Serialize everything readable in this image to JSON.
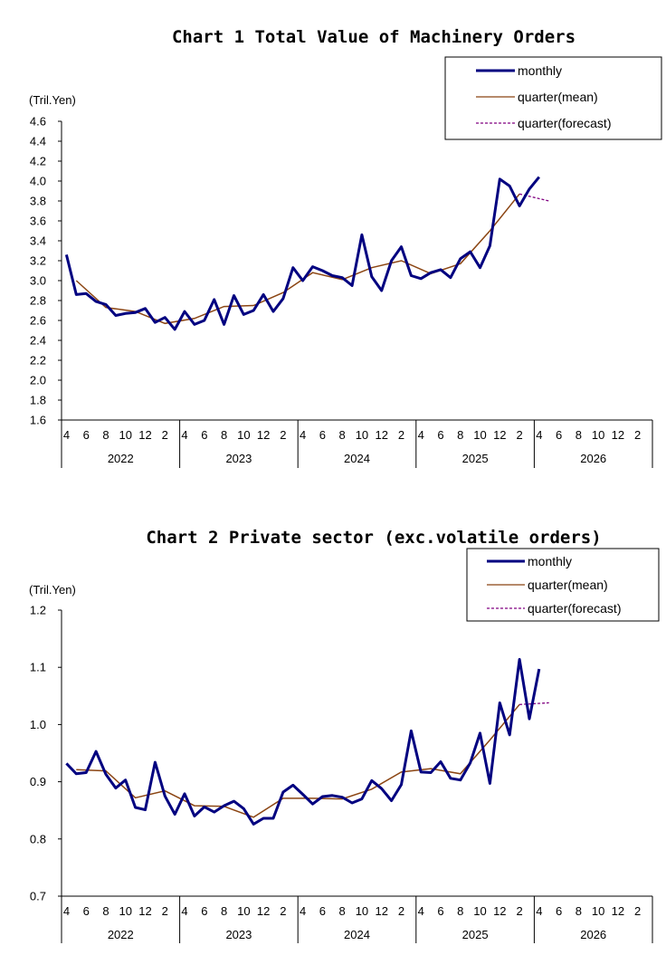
{
  "colors": {
    "monthly": "#000080",
    "mean": "#8B4513",
    "forecast": "#800080"
  },
  "legend": {
    "monthly": "monthly",
    "mean": "quarter(mean)",
    "forecast": "quarter(forecast)"
  },
  "month_labels": [
    "4",
    "6",
    "8",
    "10",
    "12",
    "2",
    "4",
    "6",
    "8",
    "10",
    "12",
    "2",
    "4",
    "6",
    "8",
    "10",
    "12",
    "2",
    "4",
    "6",
    "8",
    "10",
    "12",
    "2",
    "4",
    "6",
    "8",
    "10",
    "12",
    "2"
  ],
  "year_labels": [
    "2022",
    "2023",
    "2024",
    "2025",
    "2026"
  ],
  "chart_data": [
    {
      "type": "line",
      "title": "Chart 1 Total Value of Machinery Orders",
      "unit": "(Tril.Yen)",
      "ylim": [
        1.6,
        4.6
      ],
      "yticks": [
        "1.6",
        "1.8",
        "2.0",
        "2.2",
        "2.4",
        "2.6",
        "2.8",
        "3.0",
        "3.2",
        "3.4",
        "3.6",
        "3.8",
        "4.0",
        "4.2",
        "4.4",
        "4.6"
      ],
      "x": [
        "2022-04",
        "2022-05",
        "2022-06",
        "2022-07",
        "2022-08",
        "2022-09",
        "2022-10",
        "2022-11",
        "2022-12",
        "2023-01",
        "2023-02",
        "2023-03",
        "2023-04",
        "2023-05",
        "2023-06",
        "2023-07",
        "2023-08",
        "2023-09",
        "2023-10",
        "2023-11",
        "2023-12",
        "2024-01",
        "2024-02",
        "2024-03",
        "2024-04",
        "2024-05",
        "2024-06",
        "2024-07",
        "2024-08",
        "2024-09",
        "2024-10",
        "2024-11",
        "2024-12",
        "2025-01",
        "2025-02",
        "2025-03",
        "2025-04",
        "2025-05",
        "2025-06",
        "2025-07",
        "2025-08",
        "2025-09",
        "2025-10",
        "2025-11",
        "2025-12",
        "2026-01",
        "2026-02",
        "2026-03",
        "2026-04"
      ],
      "series": [
        {
          "name": "monthly",
          "values": [
            3.26,
            2.86,
            2.87,
            2.79,
            2.76,
            2.65,
            2.67,
            2.68,
            2.72,
            2.58,
            2.63,
            2.51,
            2.69,
            2.56,
            2.6,
            2.81,
            2.56,
            2.85,
            2.66,
            2.7,
            2.86,
            2.69,
            2.82,
            3.13,
            3.0,
            3.14,
            3.1,
            3.05,
            3.03,
            2.95,
            3.46,
            3.04,
            2.9,
            3.2,
            3.34,
            3.05,
            3.02,
            3.08,
            3.11,
            3.03,
            3.22,
            3.29,
            3.13,
            3.35,
            4.02,
            3.95,
            3.75,
            3.92,
            4.04
          ]
        },
        {
          "name": "quarter(mean)",
          "x": [
            "2022-05",
            "2022-08",
            "2022-11",
            "2023-02",
            "2023-05",
            "2023-08",
            "2023-11",
            "2024-02",
            "2024-05",
            "2024-08",
            "2024-11",
            "2025-02",
            "2025-05",
            "2025-08",
            "2025-11",
            "2026-02"
          ],
          "values": [
            3.0,
            2.73,
            2.69,
            2.57,
            2.62,
            2.74,
            2.75,
            2.88,
            3.08,
            3.01,
            3.13,
            3.2,
            3.07,
            3.17,
            3.5,
            3.87
          ]
        },
        {
          "name": "quarter(forecast)",
          "x": [
            "2026-02",
            "2026-05"
          ],
          "values": [
            3.87,
            3.8
          ]
        }
      ]
    },
    {
      "type": "line",
      "title": "Chart 2 Private sector (exc.volatile orders)",
      "unit": "(Tril.Yen)",
      "ylim": [
        0.7,
        1.2
      ],
      "yticks": [
        "0.7",
        "0.8",
        "0.9",
        "1.0",
        "1.1",
        "1.2"
      ],
      "x": [
        "2022-04",
        "2022-05",
        "2022-06",
        "2022-07",
        "2022-08",
        "2022-09",
        "2022-10",
        "2022-11",
        "2022-12",
        "2023-01",
        "2023-02",
        "2023-03",
        "2023-04",
        "2023-05",
        "2023-06",
        "2023-07",
        "2023-08",
        "2023-09",
        "2023-10",
        "2023-11",
        "2023-12",
        "2024-01",
        "2024-02",
        "2024-03",
        "2024-04",
        "2024-05",
        "2024-06",
        "2024-07",
        "2024-08",
        "2024-09",
        "2024-10",
        "2024-11",
        "2024-12",
        "2025-01",
        "2025-02",
        "2025-03",
        "2025-04",
        "2025-05",
        "2025-06",
        "2025-07",
        "2025-08",
        "2025-09",
        "2025-10",
        "2025-11",
        "2025-12",
        "2026-01",
        "2026-02",
        "2026-03",
        "2026-04"
      ],
      "series": [
        {
          "name": "monthly",
          "values": [
            0.932,
            0.914,
            0.916,
            0.953,
            0.913,
            0.889,
            0.903,
            0.855,
            0.851,
            0.934,
            0.875,
            0.843,
            0.879,
            0.84,
            0.856,
            0.847,
            0.858,
            0.866,
            0.853,
            0.826,
            0.836,
            0.836,
            0.882,
            0.894,
            0.878,
            0.861,
            0.874,
            0.876,
            0.873,
            0.863,
            0.87,
            0.902,
            0.888,
            0.867,
            0.895,
            0.989,
            0.917,
            0.916,
            0.935,
            0.906,
            0.903,
            0.933,
            0.985,
            0.897,
            1.038,
            0.982,
            1.114,
            1.01,
            1.097
          ]
        },
        {
          "name": "quarter(mean)",
          "x": [
            "2022-05",
            "2022-08",
            "2022-11",
            "2023-02",
            "2023-05",
            "2023-08",
            "2023-11",
            "2024-02",
            "2024-05",
            "2024-08",
            "2024-11",
            "2025-02",
            "2025-05",
            "2025-08",
            "2025-11",
            "2026-02"
          ],
          "values": [
            0.921,
            0.919,
            0.872,
            0.884,
            0.858,
            0.857,
            0.838,
            0.871,
            0.871,
            0.87,
            0.887,
            0.917,
            0.923,
            0.914,
            0.973,
            1.035
          ]
        },
        {
          "name": "quarter(forecast)",
          "x": [
            "2026-02",
            "2026-05"
          ],
          "values": [
            1.035,
            1.038
          ]
        }
      ]
    }
  ]
}
